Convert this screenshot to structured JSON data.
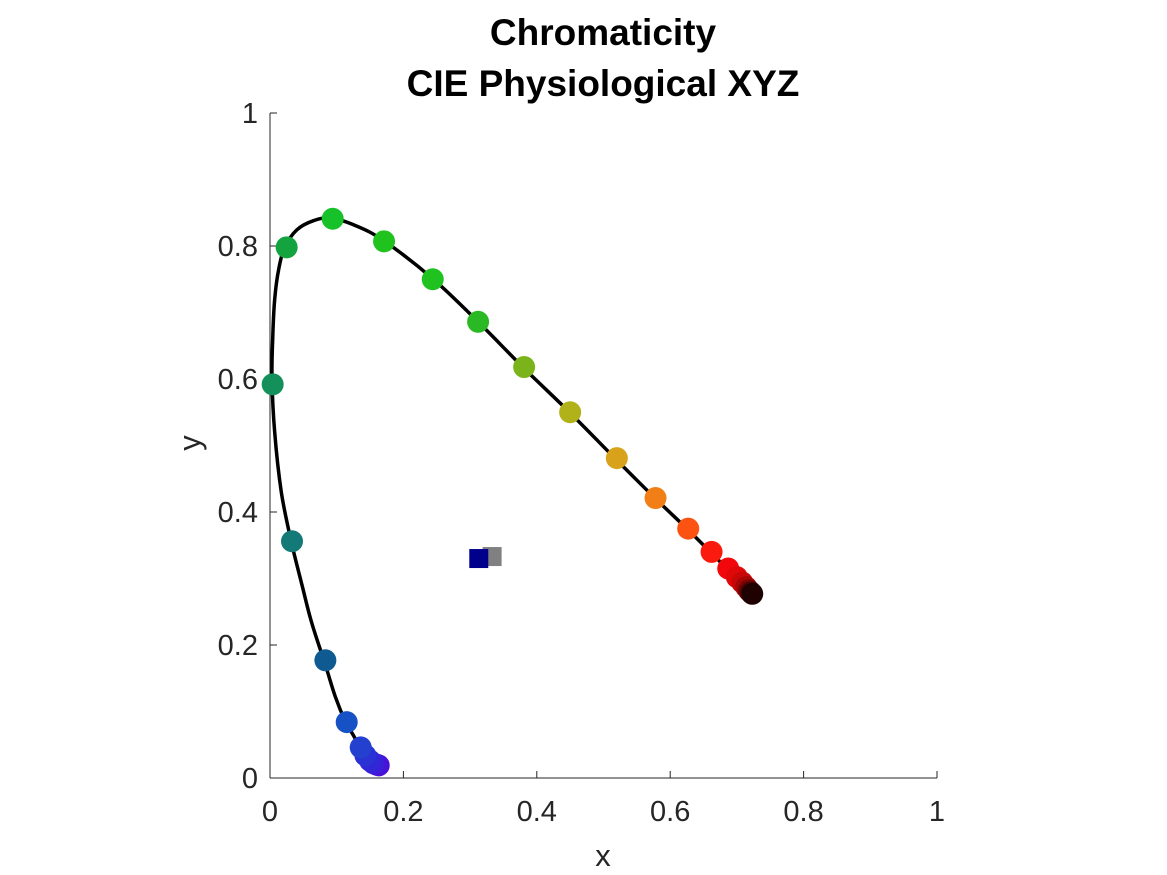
{
  "chart_data": {
    "type": "scatter",
    "title": "Chromaticity",
    "subtitle": "CIE Physiological XYZ",
    "xlabel": "x",
    "ylabel": "y",
    "xlim": [
      0,
      1
    ],
    "ylim": [
      0,
      1
    ],
    "xticks": [
      "0",
      "0.2",
      "0.4",
      "0.6",
      "0.8",
      "1"
    ],
    "yticks": [
      "0",
      "0.2",
      "0.4",
      "0.6",
      "0.8",
      "1"
    ],
    "grid": false,
    "legend": "none",
    "locus_color": "#000000",
    "locus": [
      [
        0.16,
        0.018
      ],
      [
        0.155,
        0.02
      ],
      [
        0.15,
        0.024
      ],
      [
        0.145,
        0.03
      ],
      [
        0.14,
        0.038
      ],
      [
        0.133,
        0.05
      ],
      [
        0.125,
        0.064
      ],
      [
        0.113,
        0.085
      ],
      [
        0.098,
        0.122
      ],
      [
        0.083,
        0.17
      ],
      [
        0.062,
        0.235
      ],
      [
        0.048,
        0.29
      ],
      [
        0.032,
        0.355
      ],
      [
        0.017,
        0.43
      ],
      [
        0.007,
        0.52
      ],
      [
        0.003,
        0.6
      ],
      [
        0.004,
        0.66
      ],
      [
        0.007,
        0.72
      ],
      [
        0.013,
        0.765
      ],
      [
        0.022,
        0.798
      ],
      [
        0.04,
        0.824
      ],
      [
        0.065,
        0.838
      ],
      [
        0.092,
        0.842
      ],
      [
        0.13,
        0.83
      ],
      [
        0.172,
        0.807
      ],
      [
        0.245,
        0.75
      ],
      [
        0.312,
        0.686
      ],
      [
        0.38,
        0.617
      ],
      [
        0.449,
        0.55
      ],
      [
        0.517,
        0.481
      ],
      [
        0.577,
        0.421
      ],
      [
        0.626,
        0.374
      ],
      [
        0.661,
        0.339
      ],
      [
        0.686,
        0.314
      ],
      [
        0.702,
        0.298
      ],
      [
        0.713,
        0.287
      ],
      [
        0.72,
        0.28
      ],
      [
        0.723,
        0.277
      ]
    ],
    "spectrum_points": [
      {
        "x": 0.163,
        "y": 0.019,
        "color": "#4b0fd6"
      },
      {
        "x": 0.16,
        "y": 0.02,
        "color": "#4415d8"
      },
      {
        "x": 0.155,
        "y": 0.022,
        "color": "#3a1ed8"
      },
      {
        "x": 0.15,
        "y": 0.026,
        "color": "#3227d6"
      },
      {
        "x": 0.143,
        "y": 0.034,
        "color": "#2a32d4"
      },
      {
        "x": 0.136,
        "y": 0.046,
        "color": "#2340cf"
      },
      {
        "x": 0.115,
        "y": 0.084,
        "color": "#1652c6"
      },
      {
        "x": 0.083,
        "y": 0.177,
        "color": "#0f5b91"
      },
      {
        "x": 0.033,
        "y": 0.356,
        "color": "#137a78"
      },
      {
        "x": 0.004,
        "y": 0.592,
        "color": "#14915a"
      },
      {
        "x": 0.025,
        "y": 0.798,
        "color": "#13a33f"
      },
      {
        "x": 0.094,
        "y": 0.841,
        "color": "#17c12a"
      },
      {
        "x": 0.171,
        "y": 0.807,
        "color": "#20c21d"
      },
      {
        "x": 0.244,
        "y": 0.75,
        "color": "#1fc21f"
      },
      {
        "x": 0.312,
        "y": 0.686,
        "color": "#2ab825"
      },
      {
        "x": 0.381,
        "y": 0.618,
        "color": "#7bb41a"
      },
      {
        "x": 0.45,
        "y": 0.55,
        "color": "#b1b21a"
      },
      {
        "x": 0.52,
        "y": 0.481,
        "color": "#d8a21b"
      },
      {
        "x": 0.578,
        "y": 0.421,
        "color": "#f27f16"
      },
      {
        "x": 0.627,
        "y": 0.375,
        "color": "#fc5212"
      },
      {
        "x": 0.662,
        "y": 0.34,
        "color": "#fa1a0e"
      },
      {
        "x": 0.687,
        "y": 0.315,
        "color": "#f2080a"
      },
      {
        "x": 0.7,
        "y": 0.302,
        "color": "#e00808"
      },
      {
        "x": 0.708,
        "y": 0.294,
        "color": "#c90707"
      },
      {
        "x": 0.714,
        "y": 0.287,
        "color": "#a50606"
      },
      {
        "x": 0.718,
        "y": 0.282,
        "color": "#7a0404"
      },
      {
        "x": 0.721,
        "y": 0.279,
        "color": "#4e0303"
      },
      {
        "x": 0.723,
        "y": 0.277,
        "color": "#200101"
      }
    ],
    "white_points": [
      {
        "x": 0.333,
        "y": 0.333,
        "color": "#808080"
      },
      {
        "x": 0.313,
        "y": 0.33,
        "color": "#00008b"
      }
    ]
  }
}
